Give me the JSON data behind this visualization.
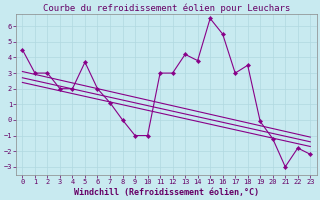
{
  "title": "Courbe du refroidissement éolien pour Leuchars",
  "xlabel": "Windchill (Refroidissement éolien,°C)",
  "background_color": "#c8eaf0",
  "grid_color": "#b0d8e0",
  "line_color": "#880088",
  "x": [
    0,
    1,
    2,
    3,
    4,
    5,
    6,
    7,
    8,
    9,
    10,
    11,
    12,
    13,
    14,
    15,
    16,
    17,
    18,
    19,
    20,
    21,
    22,
    23
  ],
  "y_main": [
    4.5,
    3.0,
    3.0,
    2.0,
    2.0,
    3.7,
    2.0,
    1.1,
    0.0,
    -1.0,
    -1.0,
    3.0,
    3.0,
    4.2,
    3.8,
    6.5,
    5.5,
    3.0,
    3.5,
    -0.1,
    -1.2,
    -3.0,
    -1.8,
    -2.2
  ],
  "reg_line1": [
    [
      0,
      3.1
    ],
    [
      23,
      -1.1
    ]
  ],
  "reg_line2": [
    [
      0,
      2.7
    ],
    [
      23,
      -1.4
    ]
  ],
  "reg_line3": [
    [
      0,
      2.4
    ],
    [
      23,
      -1.7
    ]
  ],
  "ylim": [
    -3.5,
    6.8
  ],
  "xlim": [
    -0.5,
    23.5
  ],
  "yticks": [
    -3,
    -2,
    -1,
    0,
    1,
    2,
    3,
    4,
    5,
    6
  ],
  "xticks": [
    0,
    1,
    2,
    3,
    4,
    5,
    6,
    7,
    8,
    9,
    10,
    11,
    12,
    13,
    14,
    15,
    16,
    17,
    18,
    19,
    20,
    21,
    22,
    23
  ],
  "tick_fontsize": 5.0,
  "xlabel_fontsize": 6.0,
  "title_fontsize": 6.5
}
